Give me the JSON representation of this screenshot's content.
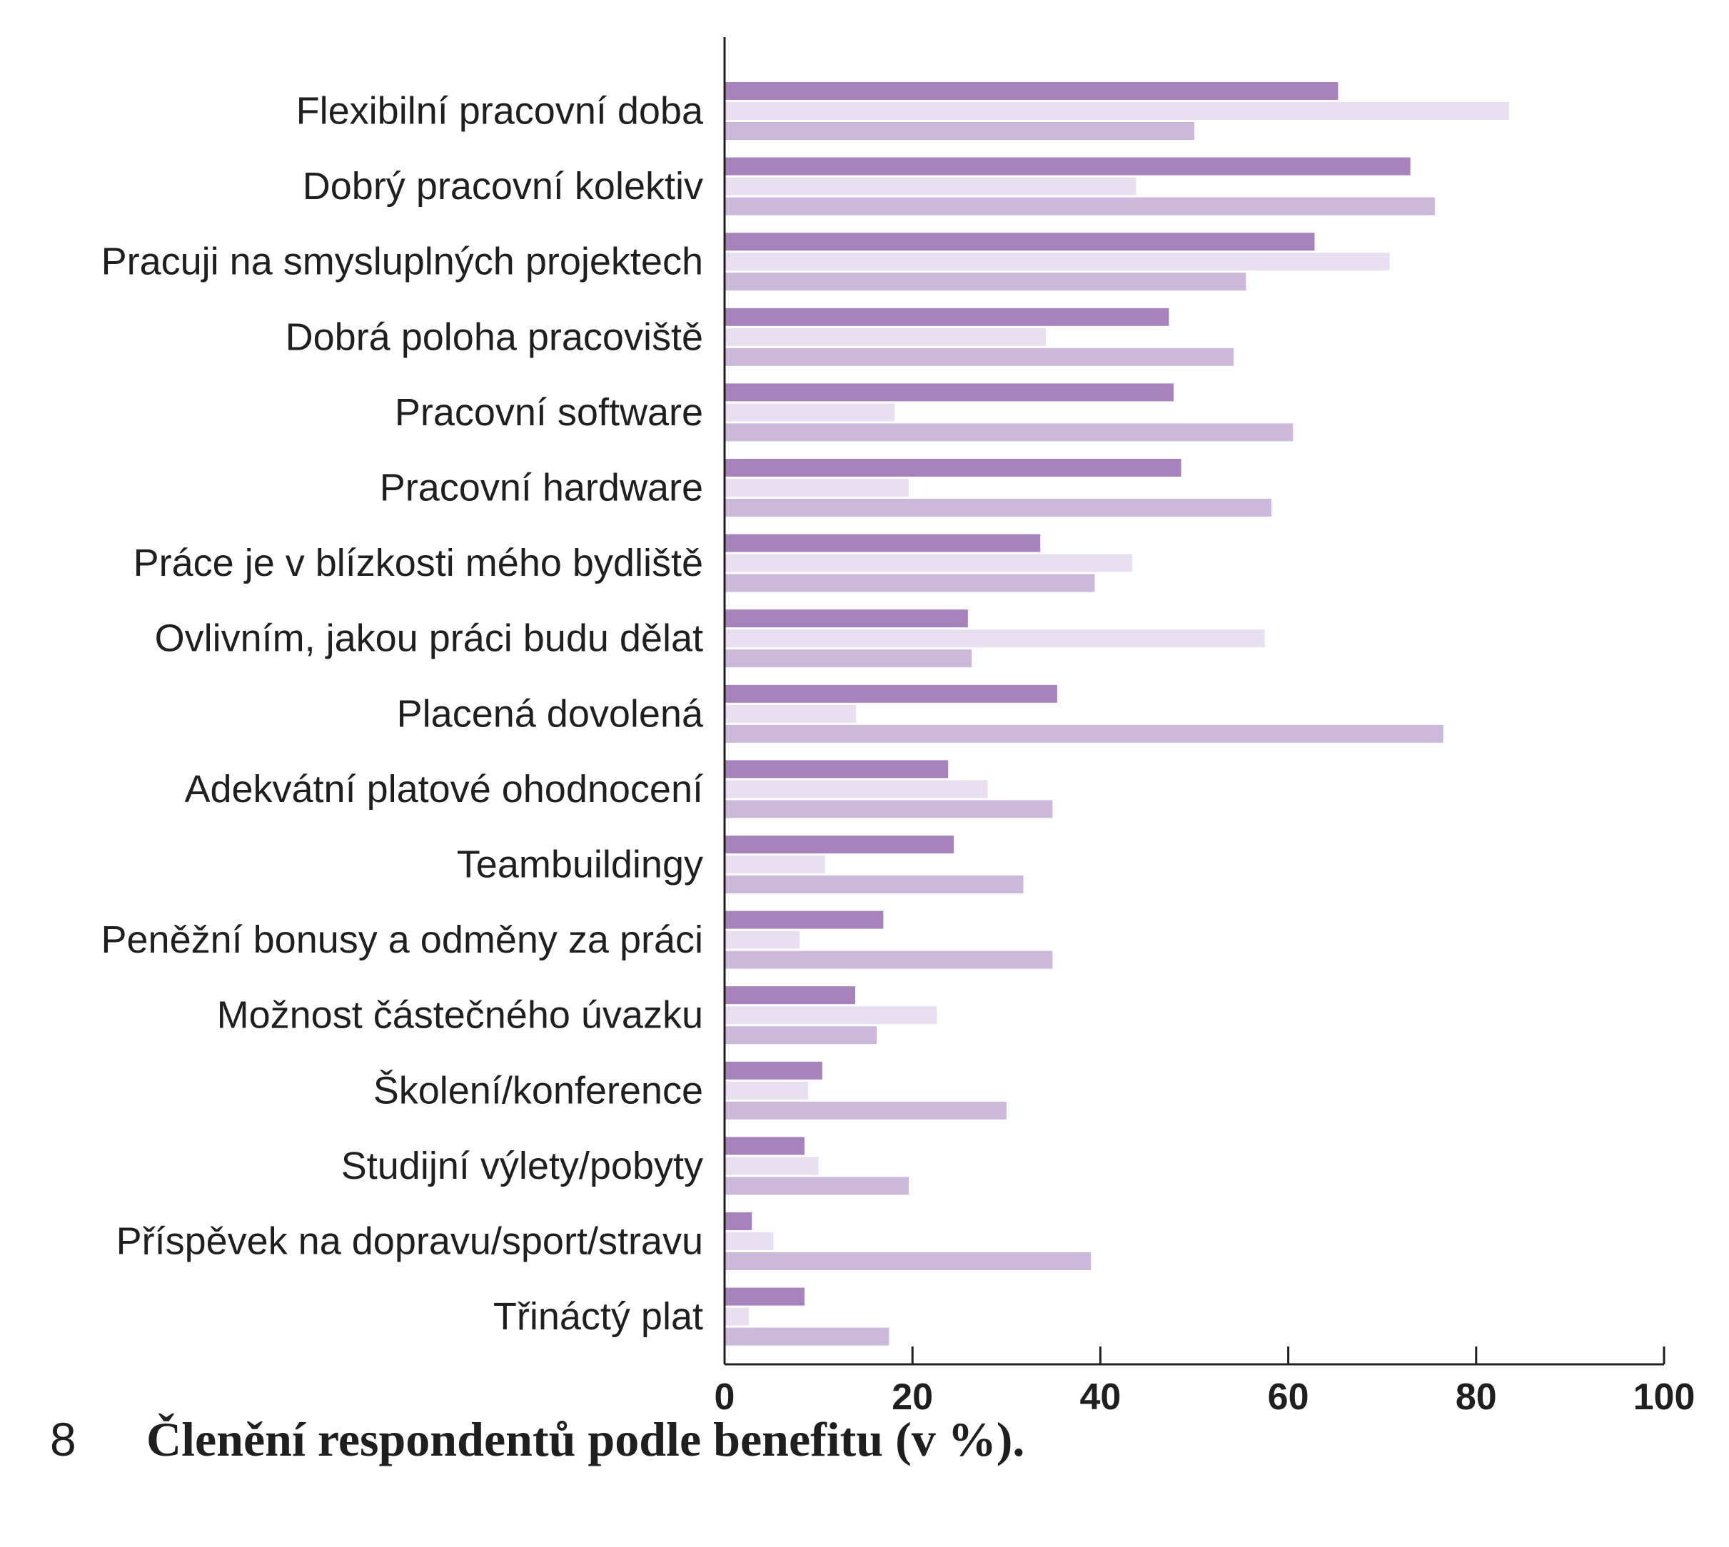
{
  "colors": {
    "series": [
      "#a882ba",
      "#e8dff0",
      "#cbb8da"
    ],
    "axis": "#1f1f1f",
    "text": "#1f1f1f"
  },
  "caption": {
    "number": "8",
    "title": "Členění respondentů podle benefitu (v %)."
  },
  "chart_data": {
    "type": "bar",
    "orientation": "horizontal",
    "categories": [
      "Flexibilní pracovní doba",
      "Dobrý pracovní kolektiv",
      "Pracuji na smysluplných projektech",
      "Dobrá poloha pracoviště",
      "Pracovní software",
      "Pracovní hardware",
      "Práce je v blízkosti mého bydliště",
      "Ovlivním, jakou práci budu dělat",
      "Placená dovolená",
      "Adekvátní platové ohodnocení",
      "Teambuildingy",
      "Peněžní bonusy a odměny za práci",
      "Možnost částečného úvazku",
      "Školení/konference",
      "Studijní výlety/pobyty",
      "Příspěvek na dopravu/sport/stravu",
      "Třináctý plat"
    ],
    "series": [
      {
        "values": [
          65.3,
          73.0,
          62.8,
          47.3,
          47.8,
          48.6,
          33.6,
          25.9,
          35.4,
          23.8,
          24.4,
          16.9,
          13.9,
          10.4,
          8.5,
          2.9,
          8.5
        ]
      },
      {
        "values": [
          83.5,
          43.8,
          70.8,
          34.2,
          18.1,
          19.6,
          43.4,
          57.5,
          14.0,
          28.0,
          10.7,
          8.0,
          22.6,
          8.9,
          10.0,
          5.2,
          2.6
        ]
      },
      {
        "values": [
          50.0,
          75.6,
          55.5,
          54.2,
          60.5,
          58.2,
          39.4,
          26.3,
          76.5,
          34.9,
          31.8,
          34.9,
          16.2,
          30.0,
          19.6,
          39.0,
          17.5
        ]
      }
    ],
    "xlim": [
      0,
      100
    ],
    "xticks": [
      "0",
      "20",
      "40",
      "60",
      "80",
      "100"
    ],
    "xlabel": "",
    "ylabel": "",
    "grid": false,
    "legend": "none"
  }
}
